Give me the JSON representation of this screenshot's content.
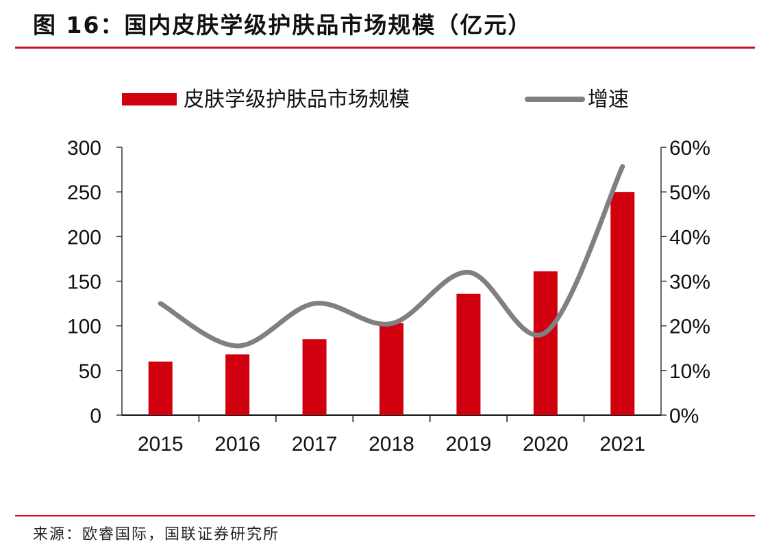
{
  "title": "图 16：国内皮肤学级护肤品市场规模（亿元）",
  "source": "来源：欧睿国际，国联证券研究所",
  "colors": {
    "bar": "#d0000f",
    "line": "#808080",
    "accent": "#c8102e"
  },
  "chart_data": {
    "type": "bar+line",
    "categories": [
      "2015",
      "2016",
      "2017",
      "2018",
      "2019",
      "2020",
      "2021"
    ],
    "series": [
      {
        "name": "皮肤学级护肤品市场规模",
        "type": "bar",
        "axis": "left",
        "values": [
          60,
          68,
          85,
          103,
          136,
          161,
          250
        ]
      },
      {
        "name": "增速",
        "type": "line",
        "axis": "right",
        "values": [
          25.0,
          15.5,
          25.0,
          20.5,
          32.0,
          18.5,
          55.7
        ]
      }
    ],
    "left_axis": {
      "ylim": [
        0,
        300
      ],
      "ticks": [
        "0",
        "50",
        "100",
        "150",
        "200",
        "250",
        "300"
      ]
    },
    "right_axis": {
      "ylim": [
        0,
        60
      ],
      "ticks": [
        "0%",
        "10%",
        "20%",
        "30%",
        "40%",
        "50%",
        "60%"
      ]
    },
    "legend_position": "top",
    "grid": false
  }
}
